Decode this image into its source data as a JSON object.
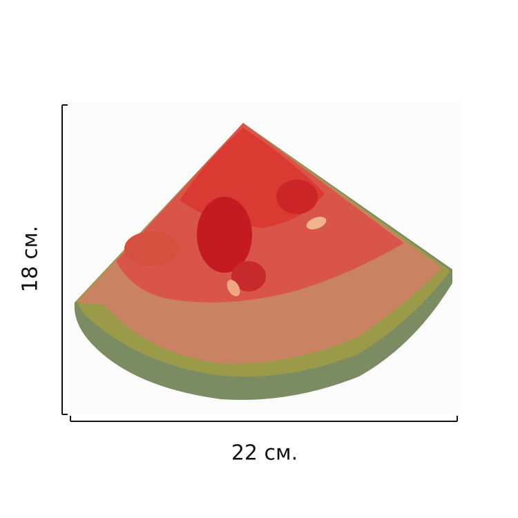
{
  "dimensions": {
    "height": {
      "label": "18 см."
    },
    "width": {
      "label": "22 см."
    }
  }
}
